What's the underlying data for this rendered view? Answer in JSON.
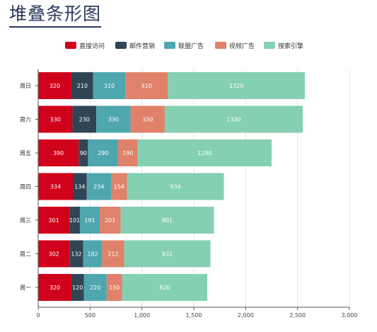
{
  "title": "堆叠条形图",
  "chart_data": {
    "type": "bar",
    "orientation": "horizontal",
    "stacked": true,
    "categories": [
      "周一",
      "周二",
      "周三",
      "周四",
      "周五",
      "周六",
      "周日"
    ],
    "series": [
      {
        "name": "直接访问",
        "color": "#d0021b",
        "values": [
          320,
          302,
          301,
          334,
          390,
          330,
          320
        ]
      },
      {
        "name": "邮件营销",
        "color": "#2f4554",
        "values": [
          120,
          132,
          101,
          134,
          90,
          230,
          210
        ]
      },
      {
        "name": "联盟广告",
        "color": "#4ea6ae",
        "values": [
          220,
          182,
          191,
          234,
          290,
          330,
          310
        ]
      },
      {
        "name": "视频广告",
        "color": "#e0826a",
        "values": [
          150,
          212,
          201,
          154,
          190,
          330,
          410
        ]
      },
      {
        "name": "搜索引擎",
        "color": "#85d0b3",
        "values": [
          820,
          832,
          901,
          934,
          1290,
          1330,
          1320
        ]
      }
    ],
    "xlim": [
      0,
      3000
    ],
    "xticks": [
      "0",
      "500",
      "1,000",
      "1,500",
      "2,000",
      "2,500",
      "3,000"
    ],
    "legend_position": "top",
    "grid": true
  }
}
